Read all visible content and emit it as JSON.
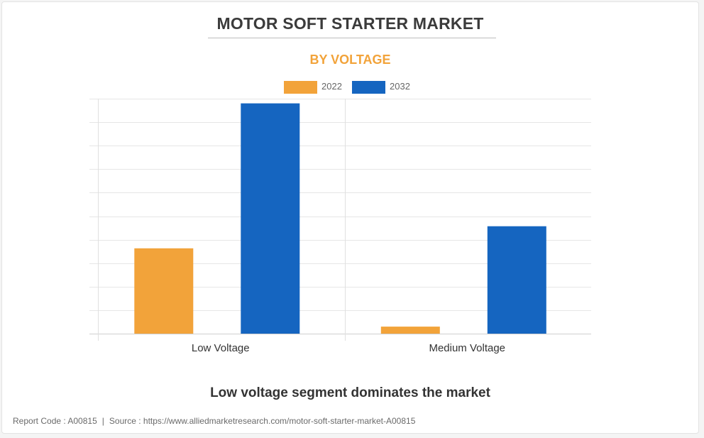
{
  "header": {
    "title": "MOTOR SOFT STARTER MARKET",
    "subtitle": "BY VOLTAGE"
  },
  "colors": {
    "series_2022": "#f2a33a",
    "series_2032": "#1565c0",
    "subtitle": "#f2a33a",
    "grid": "#e6e6e6"
  },
  "chart_data": {
    "type": "bar",
    "categories": [
      "Low Voltage",
      "Medium Voltage"
    ],
    "series": [
      {
        "name": "2022",
        "values": [
          36.3,
          3.0
        ]
      },
      {
        "name": "2032",
        "values": [
          98.0,
          45.7
        ]
      }
    ],
    "title": "MOTOR SOFT STARTER MARKET",
    "subtitle": "BY VOLTAGE",
    "xlabel": "",
    "ylabel": "",
    "ylim": [
      0,
      100
    ],
    "y_tick_count": 10,
    "grid": true,
    "y_tick_labels_shown": false,
    "legend": "top-center"
  },
  "caption": "Low voltage segment dominates the market",
  "footer": {
    "report_code": "Report Code : A00815",
    "separator": "|",
    "source": "Source : https://www.alliedmarketresearch.com/motor-soft-starter-market-A00815"
  }
}
